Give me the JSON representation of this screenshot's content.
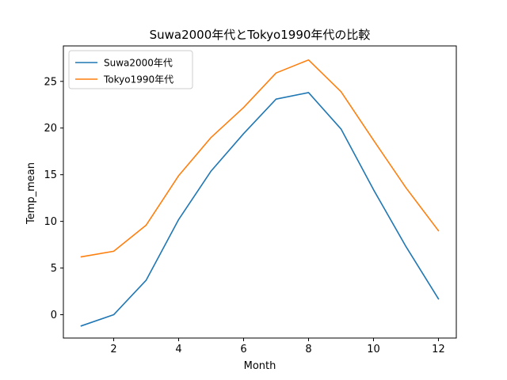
{
  "chart_data": {
    "type": "line",
    "title": "Suwa2000年代とTokyo1990年代の比較",
    "xlabel": "Month",
    "ylabel": "Temp_mean",
    "x": [
      1,
      2,
      3,
      4,
      5,
      6,
      7,
      8,
      9,
      10,
      11,
      12
    ],
    "xlim": [
      0.45,
      12.55
    ],
    "ylim": [
      -2.5,
      28.8
    ],
    "xticks": [
      2,
      4,
      6,
      8,
      10,
      12
    ],
    "yticks": [
      0,
      5,
      10,
      15,
      20,
      25
    ],
    "grid": false,
    "legend_position": "top-left",
    "series": [
      {
        "name": "Suwa2000年代",
        "color": "#1f77b4",
        "values": [
          -1.2,
          0.0,
          3.7,
          10.2,
          15.4,
          19.4,
          23.1,
          23.8,
          19.9,
          13.4,
          7.3,
          1.7
        ]
      },
      {
        "name": "Tokyo1990年代",
        "color": "#ff7f0e",
        "values": [
          6.2,
          6.8,
          9.6,
          14.9,
          19.0,
          22.2,
          25.9,
          27.3,
          23.9,
          18.7,
          13.6,
          9.0
        ]
      }
    ]
  }
}
